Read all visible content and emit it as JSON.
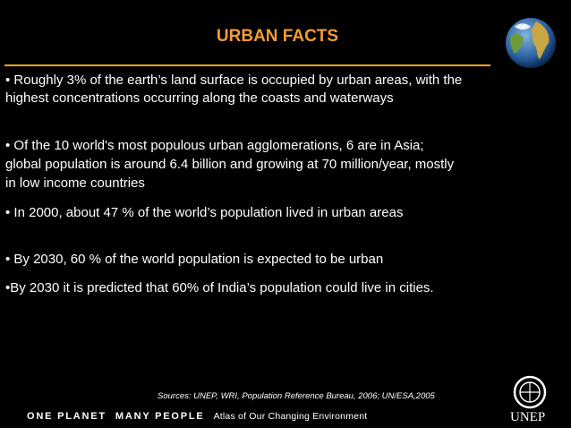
{
  "slide": {
    "title": "URBAN FACTS",
    "bullets": [
      [
        "• Roughly 3% of the earth’s land surface is occupied by urban areas, with the",
        "highest concentrations occurring along the coasts and waterways"
      ],
      [
        "• Of the 10 world's most populous urban agglomerations, 6 are in Asia;",
        "global population is around 6.4 billion and growing at 70 million/year, mostly",
        "in low income countries"
      ],
      [
        "• In 2000, about 47 % of the world’s population lived in urban areas"
      ],
      [
        "• By 2030, 60 % of the world population is expected to be urban"
      ],
      [
        "•By 2030 it is predicted that 60% of India’s population could live in cities."
      ]
    ],
    "sources": "Sources: UNEP, WRI, Population Reference Bureau, 2006; UN/ESA,2005",
    "footer": {
      "one_planet": "ONE PLANET",
      "many_people": "MANY PEOPLE",
      "atlas": "Atlas of Our Changing Environment"
    },
    "logo": "UNEP"
  }
}
